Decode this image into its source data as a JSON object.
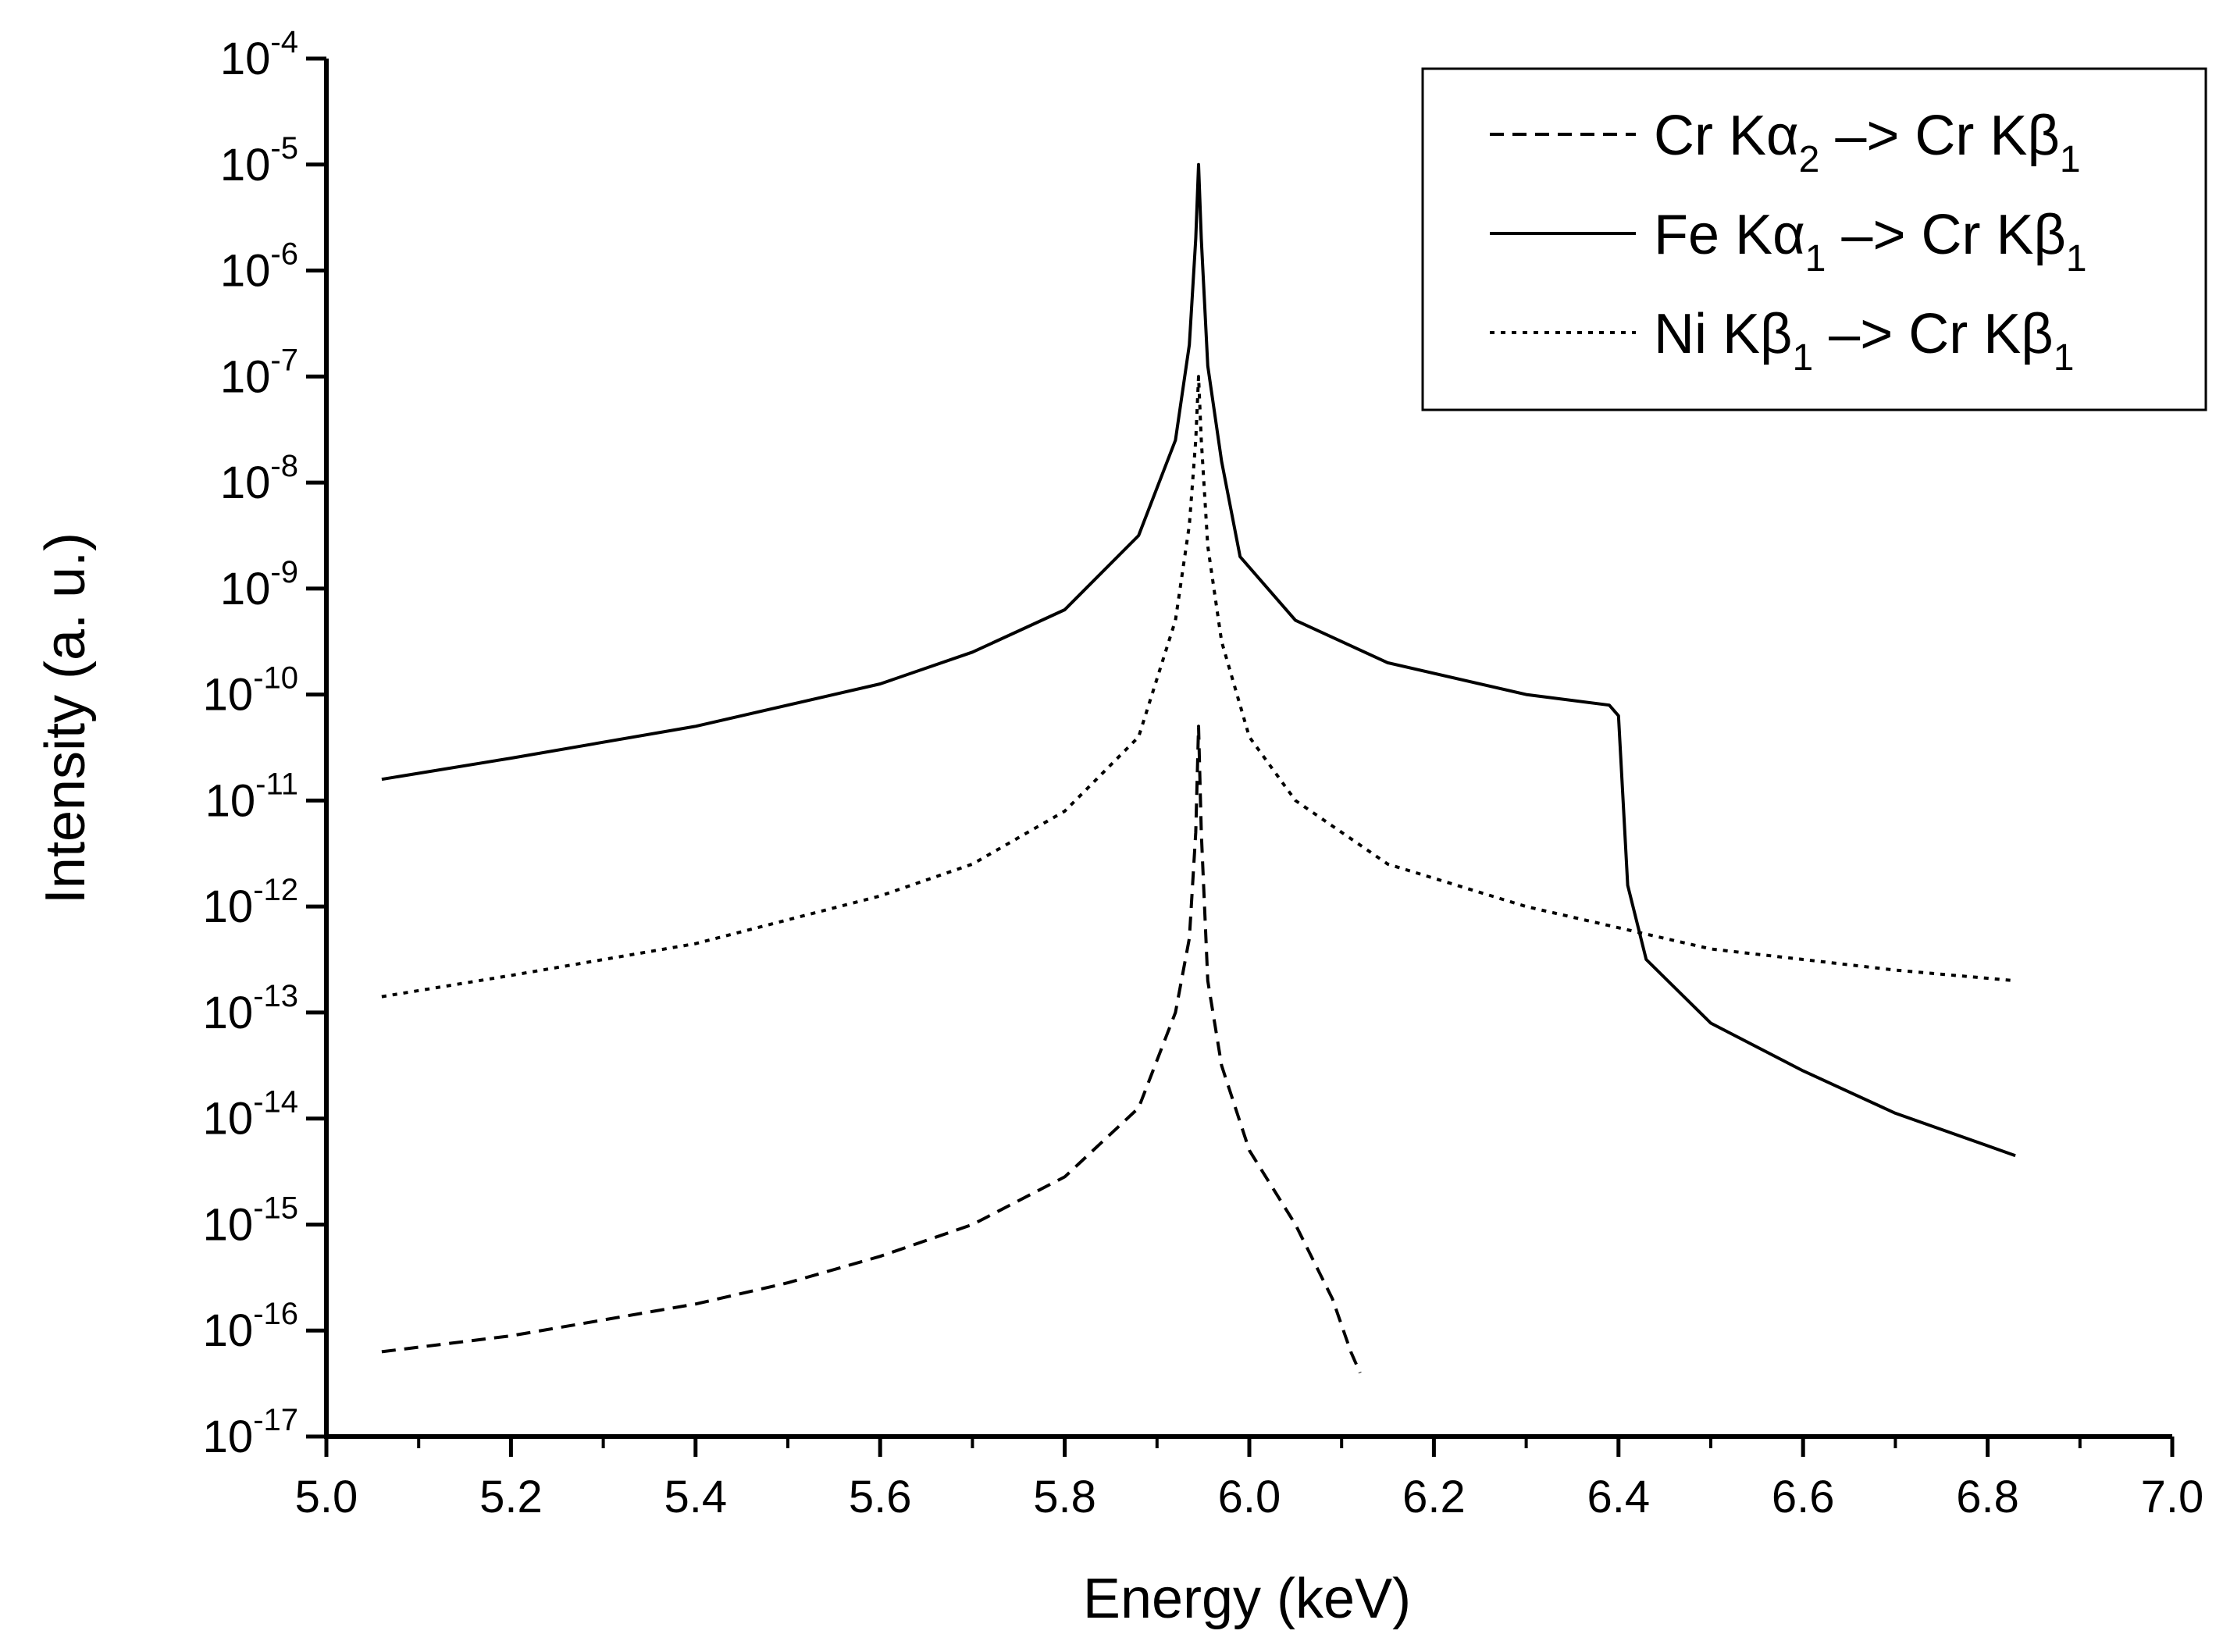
{
  "chart_data": {
    "type": "line",
    "title": "",
    "xlabel": "Energy (keV)",
    "ylabel": "Intensity (a. u.)",
    "xlim": [
      5.0,
      7.0
    ],
    "ylim_exponents": [
      -17,
      -4
    ],
    "y_scale": "log",
    "grid": false,
    "legend_position": "top-right",
    "x_ticks": [
      "5.0",
      "5.2",
      "5.4",
      "5.6",
      "5.8",
      "6.0",
      "6.2",
      "6.4",
      "6.6",
      "6.8",
      "7.0"
    ],
    "y_tick_base": "10",
    "y_tick_exponents": [
      "-4",
      "-5",
      "-6",
      "-7",
      "-8",
      "-9",
      "-10",
      "-11",
      "-12",
      "-13",
      "-14",
      "-15",
      "-16",
      "-17"
    ],
    "series": [
      {
        "name": "Cr Kα2 –> Cr Kβ1",
        "legend": {
          "element": "Cr K",
          "greek": "α",
          "sub": "2",
          "arrow": " –> Cr K",
          "greek2": "β",
          "sub2": "1"
        },
        "style": "dashed",
        "x": [
          5.06,
          5.2,
          5.3,
          5.4,
          5.5,
          5.6,
          5.7,
          5.8,
          5.88,
          5.92,
          5.935,
          5.942,
          5.945,
          5.948,
          5.955,
          5.97,
          6.0,
          6.05,
          6.09,
          6.11,
          6.12
        ],
        "log10_y": [
          -16.2,
          -16.05,
          -15.9,
          -15.75,
          -15.55,
          -15.3,
          -15.0,
          -14.55,
          -13.9,
          -13.0,
          -12.3,
          -11.3,
          -10.3,
          -11.3,
          -12.7,
          -13.5,
          -14.3,
          -15.0,
          -15.7,
          -16.2,
          -16.4
        ]
      },
      {
        "name": "Fe Kα1 –> Cr Kβ1",
        "legend": {
          "element": "Fe K",
          "greek": "α",
          "sub": "1",
          "arrow": " –> Cr K",
          "greek2": "β",
          "sub2": "1"
        },
        "style": "solid",
        "x": [
          5.06,
          5.2,
          5.4,
          5.6,
          5.7,
          5.8,
          5.88,
          5.92,
          5.935,
          5.942,
          5.945,
          5.948,
          5.955,
          5.97,
          5.99,
          6.05,
          6.15,
          6.3,
          6.39,
          6.4,
          6.405,
          6.41,
          6.43,
          6.5,
          6.6,
          6.7,
          6.83
        ],
        "log10_y": [
          -10.8,
          -10.6,
          -10.3,
          -9.9,
          -9.6,
          -9.2,
          -8.5,
          -7.6,
          -6.7,
          -5.7,
          -5.0,
          -5.7,
          -6.9,
          -7.8,
          -8.7,
          -9.3,
          -9.7,
          -10.0,
          -10.1,
          -10.2,
          -11.0,
          -11.8,
          -12.5,
          -13.1,
          -13.55,
          -13.95,
          -14.35
        ]
      },
      {
        "name": "Ni Kβ1 –> Cr Kβ1",
        "legend": {
          "element": "Ni K",
          "greek": "β",
          "sub": "1",
          "arrow": " –> Cr K",
          "greek2": "β",
          "sub2": "1"
        },
        "style": "dotted",
        "x": [
          5.06,
          5.2,
          5.4,
          5.6,
          5.7,
          5.8,
          5.88,
          5.92,
          5.935,
          5.942,
          5.945,
          5.948,
          5.955,
          5.97,
          6.0,
          6.05,
          6.15,
          6.3,
          6.4,
          6.5,
          6.6,
          6.7,
          6.83
        ],
        "log10_y": [
          -12.85,
          -12.65,
          -12.35,
          -11.9,
          -11.6,
          -11.1,
          -10.4,
          -9.3,
          -8.4,
          -7.6,
          -7.0,
          -7.6,
          -8.6,
          -9.5,
          -10.4,
          -11.0,
          -11.6,
          -12.0,
          -12.2,
          -12.4,
          -12.5,
          -12.6,
          -12.7
        ]
      }
    ]
  }
}
